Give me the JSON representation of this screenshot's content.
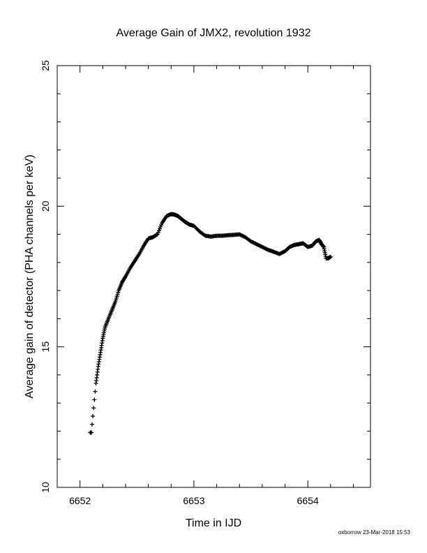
{
  "chart_data": {
    "type": "scatter",
    "title": "Average Gain of JMX2, revolution 1932",
    "xlabel": "Time in IJD",
    "ylabel": "Average gain of detector (PHA channels per keV)",
    "xlim": [
      6651.8,
      6654.55
    ],
    "ylim": [
      10,
      25
    ],
    "xticks": [
      6652,
      6653,
      6654
    ],
    "xtick_labels": [
      "6652",
      "6653",
      "6654"
    ],
    "yticks": [
      10,
      15,
      20,
      25
    ],
    "ytick_labels": [
      "10",
      "15",
      "20",
      "25"
    ],
    "grid": false,
    "marker": "plus",
    "series": [
      {
        "x": [
          6652.09,
          6652.1,
          6652.14,
          6652.16,
          6652.18,
          6652.2,
          6652.22,
          6652.25,
          6652.28,
          6652.31,
          6652.34,
          6652.37,
          6652.4,
          6652.44,
          6652.48,
          6652.52,
          6652.56,
          6652.6,
          6652.64,
          6652.68,
          6652.72,
          6652.76,
          6652.8,
          6652.83,
          6652.86,
          6652.89,
          6652.92,
          6652.96,
          6653.0,
          6653.05,
          6653.1,
          6653.15,
          6653.2,
          6653.25,
          6653.3,
          6653.35,
          6653.4,
          6653.45,
          6653.5,
          6653.55,
          6653.6,
          6653.65,
          6653.7,
          6653.75,
          6653.8,
          6653.84,
          6653.88,
          6653.92,
          6653.96,
          6654.0,
          6654.04,
          6654.07,
          6654.1,
          6654.12,
          6654.14,
          6654.16,
          6654.18,
          6654.2
        ],
        "y": [
          11.95,
          11.95,
          13.7,
          14.3,
          14.8,
          15.3,
          15.7,
          16.0,
          16.3,
          16.6,
          17.0,
          17.3,
          17.5,
          17.8,
          18.05,
          18.3,
          18.6,
          18.85,
          18.9,
          19.0,
          19.4,
          19.65,
          19.72,
          19.7,
          19.65,
          19.55,
          19.45,
          19.35,
          19.3,
          19.1,
          18.95,
          18.92,
          18.95,
          18.95,
          18.97,
          18.98,
          19.0,
          18.9,
          18.75,
          18.65,
          18.55,
          18.45,
          18.38,
          18.3,
          18.4,
          18.55,
          18.62,
          18.65,
          18.68,
          18.55,
          18.6,
          18.75,
          18.8,
          18.65,
          18.55,
          18.15,
          18.15,
          18.2
        ]
      }
    ]
  },
  "footer": {
    "credit": "oxborrow 23-Mar-2018 15:53"
  }
}
